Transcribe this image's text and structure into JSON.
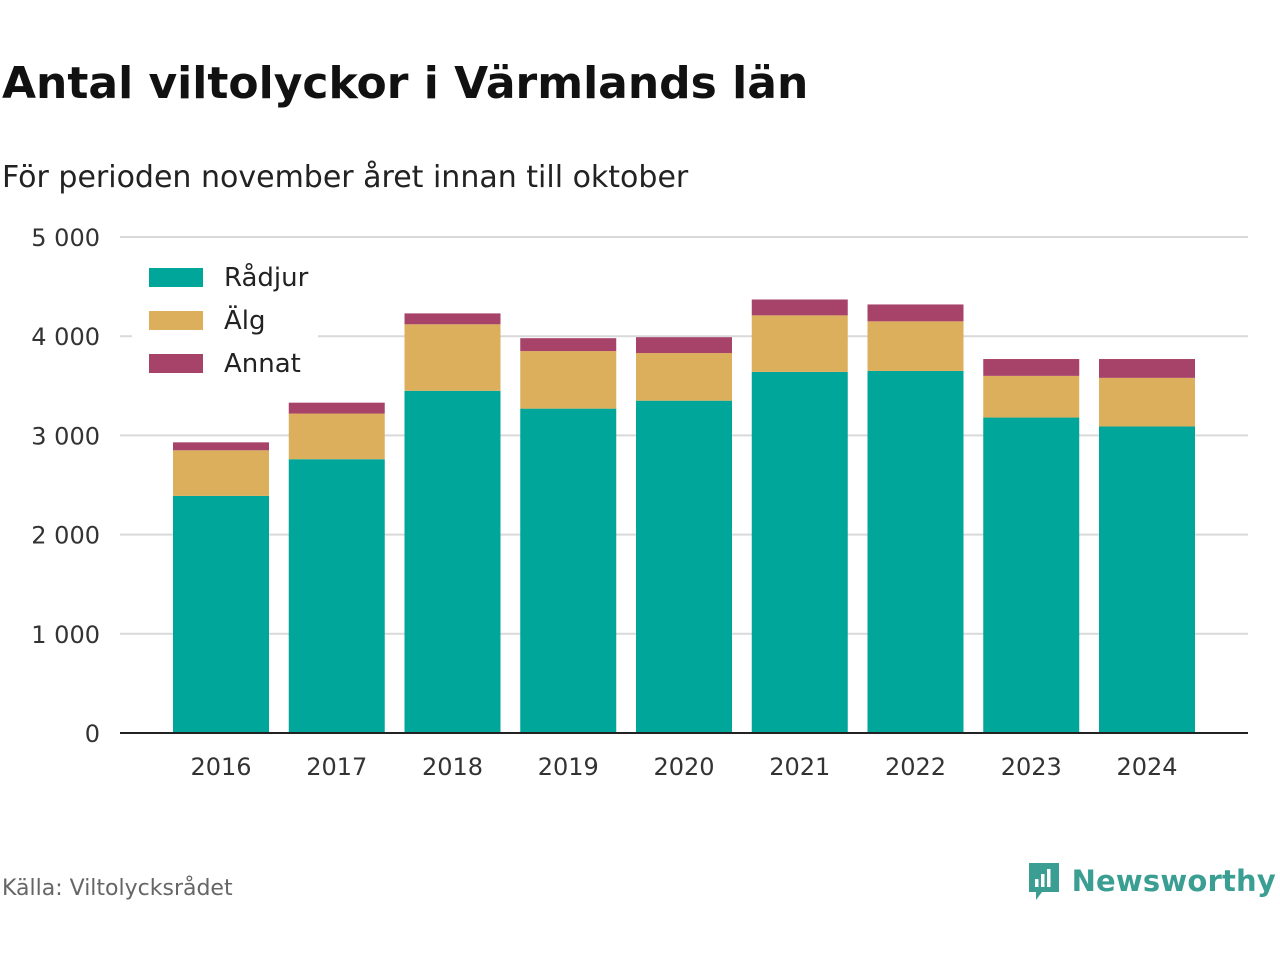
{
  "title": "Antal viltolyckor i Värmlands län",
  "subtitle": "För perioden november året innan till oktober",
  "source": "Källa: Viltolycksrådet",
  "brand": {
    "name": "Newsworthy",
    "icon": "bar-chart-speech-icon",
    "color": "#3a9e93"
  },
  "chart_data": {
    "type": "bar",
    "stacked": true,
    "categories": [
      "2016",
      "2017",
      "2018",
      "2019",
      "2020",
      "2021",
      "2022",
      "2023",
      "2024"
    ],
    "series": [
      {
        "name": "Rådjur",
        "color": "#00a69a",
        "values": [
          2390,
          2760,
          3450,
          3270,
          3350,
          3640,
          3650,
          3180,
          3090
        ]
      },
      {
        "name": "Älg",
        "color": "#dcaf5c",
        "values": [
          460,
          460,
          670,
          580,
          480,
          570,
          500,
          420,
          490
        ]
      },
      {
        "name": "Annat",
        "color": "#a74369",
        "values": [
          80,
          110,
          110,
          130,
          160,
          160,
          170,
          170,
          190
        ]
      }
    ],
    "yticks": [
      0,
      1000,
      2000,
      3000,
      4000,
      5000
    ],
    "ytick_labels": [
      "0",
      "1 000",
      "2 000",
      "3 000",
      "4 000",
      "5 000"
    ],
    "ylim": [
      0,
      5000
    ],
    "grid": true,
    "legend": "top-left"
  }
}
